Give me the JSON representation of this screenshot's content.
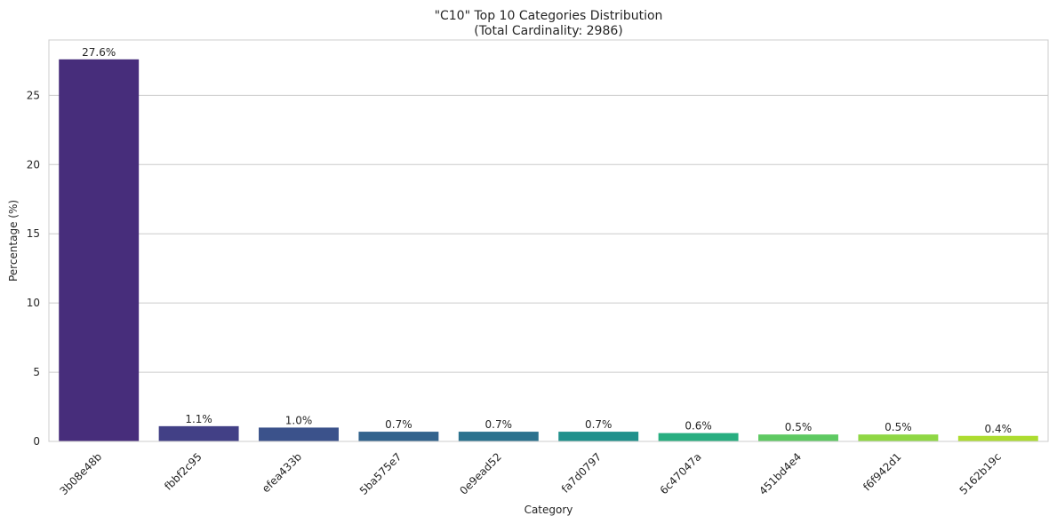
{
  "chart_data": {
    "type": "bar",
    "title": "\"C10\" Top 10 Categories Distribution",
    "subtitle": "(Total Cardinality: 2986)",
    "xlabel": "Category",
    "ylabel": "Percentage (%)",
    "categories": [
      "3b08e48b",
      "fbbf2c95",
      "efea433b",
      "5ba575e7",
      "0e9ead52",
      "fa7d0797",
      "6c47047a",
      "451bd4e4",
      "f6f942d1",
      "5162b19c"
    ],
    "values": [
      27.6,
      1.1,
      1.0,
      0.7,
      0.7,
      0.7,
      0.6,
      0.5,
      0.5,
      0.4
    ],
    "value_labels": [
      "27.6%",
      "1.1%",
      "1.0%",
      "0.7%",
      "0.7%",
      "0.7%",
      "0.6%",
      "0.5%",
      "0.5%",
      "0.4%"
    ],
    "colors": [
      "#472d7b",
      "#424086",
      "#3b528b",
      "#33638d",
      "#2c728e",
      "#21918c",
      "#28ae80",
      "#5ec962",
      "#8fd744",
      "#addc30"
    ],
    "ylim": [
      0,
      29.0
    ],
    "yticks": [
      0,
      5,
      10,
      15,
      20,
      25
    ],
    "ytick_labels": [
      "0",
      "5",
      "10",
      "15",
      "20",
      "25"
    ],
    "grid": true,
    "xtick_rotation": 45
  }
}
